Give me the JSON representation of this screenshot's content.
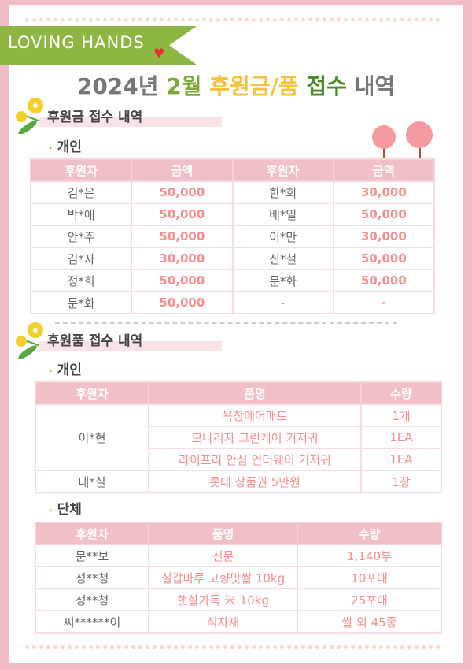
{
  "banner": {
    "text": "LOVING HANDS"
  },
  "title": {
    "year": "2024년",
    "month": "2월",
    "kind": "후원금/품",
    "receive": "접수",
    "history": "내역"
  },
  "section1": {
    "heading": "후원금 접수 내역",
    "sub": "개인",
    "headers": [
      "후원자",
      "금액",
      "후원자",
      "금액"
    ],
    "rows": [
      [
        "김*은",
        "50,000",
        "한*희",
        "30,000"
      ],
      [
        "박*애",
        "50,000",
        "배*일",
        "50,000"
      ],
      [
        "안*주",
        "50,000",
        "이*만",
        "30,000"
      ],
      [
        "김*자",
        "30,000",
        "신*철",
        "50,000"
      ],
      [
        "정*희",
        "50,000",
        "문*화",
        "50,000"
      ],
      [
        "문*화",
        "50,000",
        "-",
        "-"
      ]
    ]
  },
  "section2": {
    "heading": "후원품 접수 내역",
    "sub_individual": "개인",
    "headers": [
      "후원자",
      "품명",
      "수량"
    ],
    "individual": [
      {
        "donor": "이*현",
        "items": [
          [
            "욕창에어매트",
            "1개"
          ],
          [
            "모나리자 그린케어 기저귀",
            "1EA"
          ],
          [
            "라이프리 안심 언더웨어 기저귀",
            "1EA"
          ]
        ]
      },
      {
        "donor": "태*실",
        "items": [
          [
            "롯데 상품권 5만원",
            "1장"
          ]
        ]
      }
    ],
    "sub_group": "단체",
    "group": [
      [
        "문**보",
        "신문",
        "1,140부"
      ],
      [
        "성**청",
        "칠갑마루 고향맛쌀 10kg",
        "10포대"
      ],
      [
        "성**청",
        "햇살가득 米 10kg",
        "25포대"
      ],
      [
        "씨******이",
        "식자재",
        "쌀 외 45종"
      ]
    ]
  },
  "colors": {
    "frame": "#f2bcc6",
    "header": "#f0bfc8",
    "value": "#f28f8f",
    "banner": "#8db742"
  }
}
